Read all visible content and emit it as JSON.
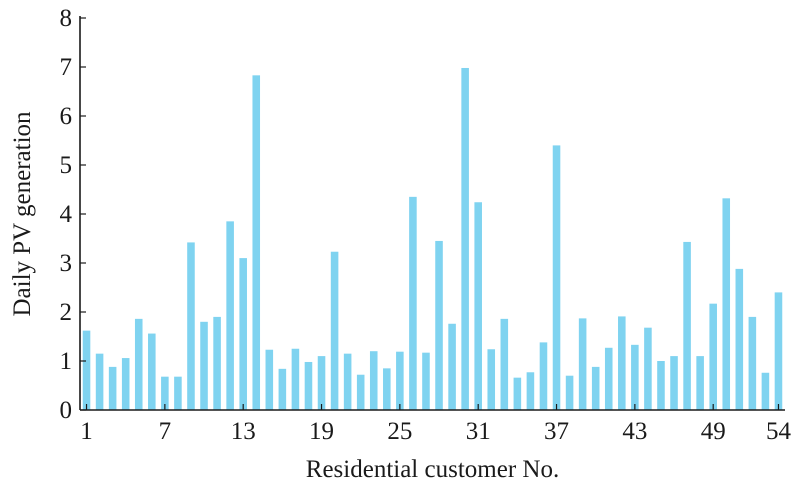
{
  "chart_data": {
    "type": "bar",
    "xlabel": "Residential customer No.",
    "ylabel": "Daily PV generation",
    "ylim": [
      0,
      8
    ],
    "yticks": [
      0,
      1,
      2,
      3,
      4,
      5,
      6,
      7,
      8
    ],
    "xtick_labels": [
      "1",
      "7",
      "13",
      "19",
      "25",
      "31",
      "37",
      "43",
      "49",
      "54"
    ],
    "xtick_positions": [
      1,
      7,
      13,
      19,
      25,
      31,
      37,
      43,
      49,
      54
    ],
    "categories": [
      1,
      2,
      3,
      4,
      5,
      6,
      7,
      8,
      9,
      10,
      11,
      12,
      13,
      14,
      15,
      16,
      17,
      18,
      19,
      20,
      21,
      22,
      23,
      24,
      25,
      26,
      27,
      28,
      29,
      30,
      31,
      32,
      33,
      34,
      35,
      36,
      37,
      38,
      39,
      40,
      41,
      42,
      43,
      44,
      45,
      46,
      47,
      48,
      49,
      50,
      51,
      52,
      53,
      54
    ],
    "values": [
      1.62,
      1.15,
      0.88,
      1.06,
      1.86,
      1.56,
      0.68,
      0.68,
      3.42,
      1.8,
      1.9,
      3.85,
      3.1,
      6.83,
      1.23,
      0.84,
      1.25,
      0.98,
      1.1,
      3.23,
      1.15,
      0.72,
      1.2,
      0.85,
      1.19,
      4.35,
      1.17,
      3.45,
      1.76,
      6.98,
      4.24,
      1.24,
      1.86,
      0.66,
      0.77,
      1.38,
      5.4,
      0.7,
      1.87,
      0.88,
      1.27,
      1.91,
      1.33,
      1.68,
      1.0,
      1.1,
      3.43,
      1.1,
      2.17,
      4.32,
      2.88,
      1.9,
      0.76,
      2.4
    ],
    "bar_color": "#7fd3f0",
    "axis_color": "#1a1a1a",
    "grid": false,
    "legend": "none"
  }
}
